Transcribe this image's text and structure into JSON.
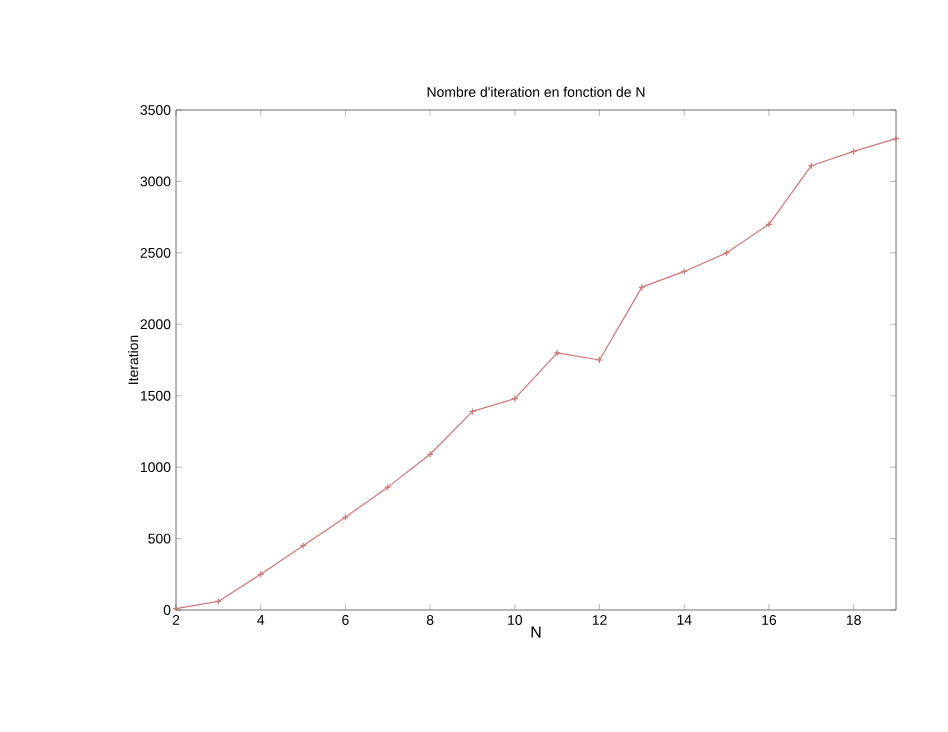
{
  "chart_data": {
    "type": "line",
    "title": "Nombre d'iteration en fonction de N",
    "xlabel": "N",
    "ylabel": "Iteration",
    "x": [
      2,
      3,
      4,
      5,
      6,
      7,
      8,
      9,
      10,
      11,
      12,
      13,
      14,
      15,
      16,
      17,
      18,
      19
    ],
    "series": [
      {
        "color": "#cc7777",
        "values": [
          10,
          60,
          250,
          450,
          650,
          860,
          1090,
          1390,
          1480,
          1800,
          1750,
          2260,
          2370,
          2500,
          2700,
          3110,
          3210,
          3300
        ]
      }
    ],
    "xlim": [
      2,
      19
    ],
    "xticks": [
      2,
      4,
      6,
      8,
      10,
      12,
      14,
      16,
      18
    ],
    "ylim": [
      0,
      3500
    ],
    "yticks": [
      0,
      500,
      1000,
      1500,
      2000,
      2500,
      3000,
      3500
    ],
    "marker": "cross",
    "line_style": "solid",
    "grid": false
  }
}
